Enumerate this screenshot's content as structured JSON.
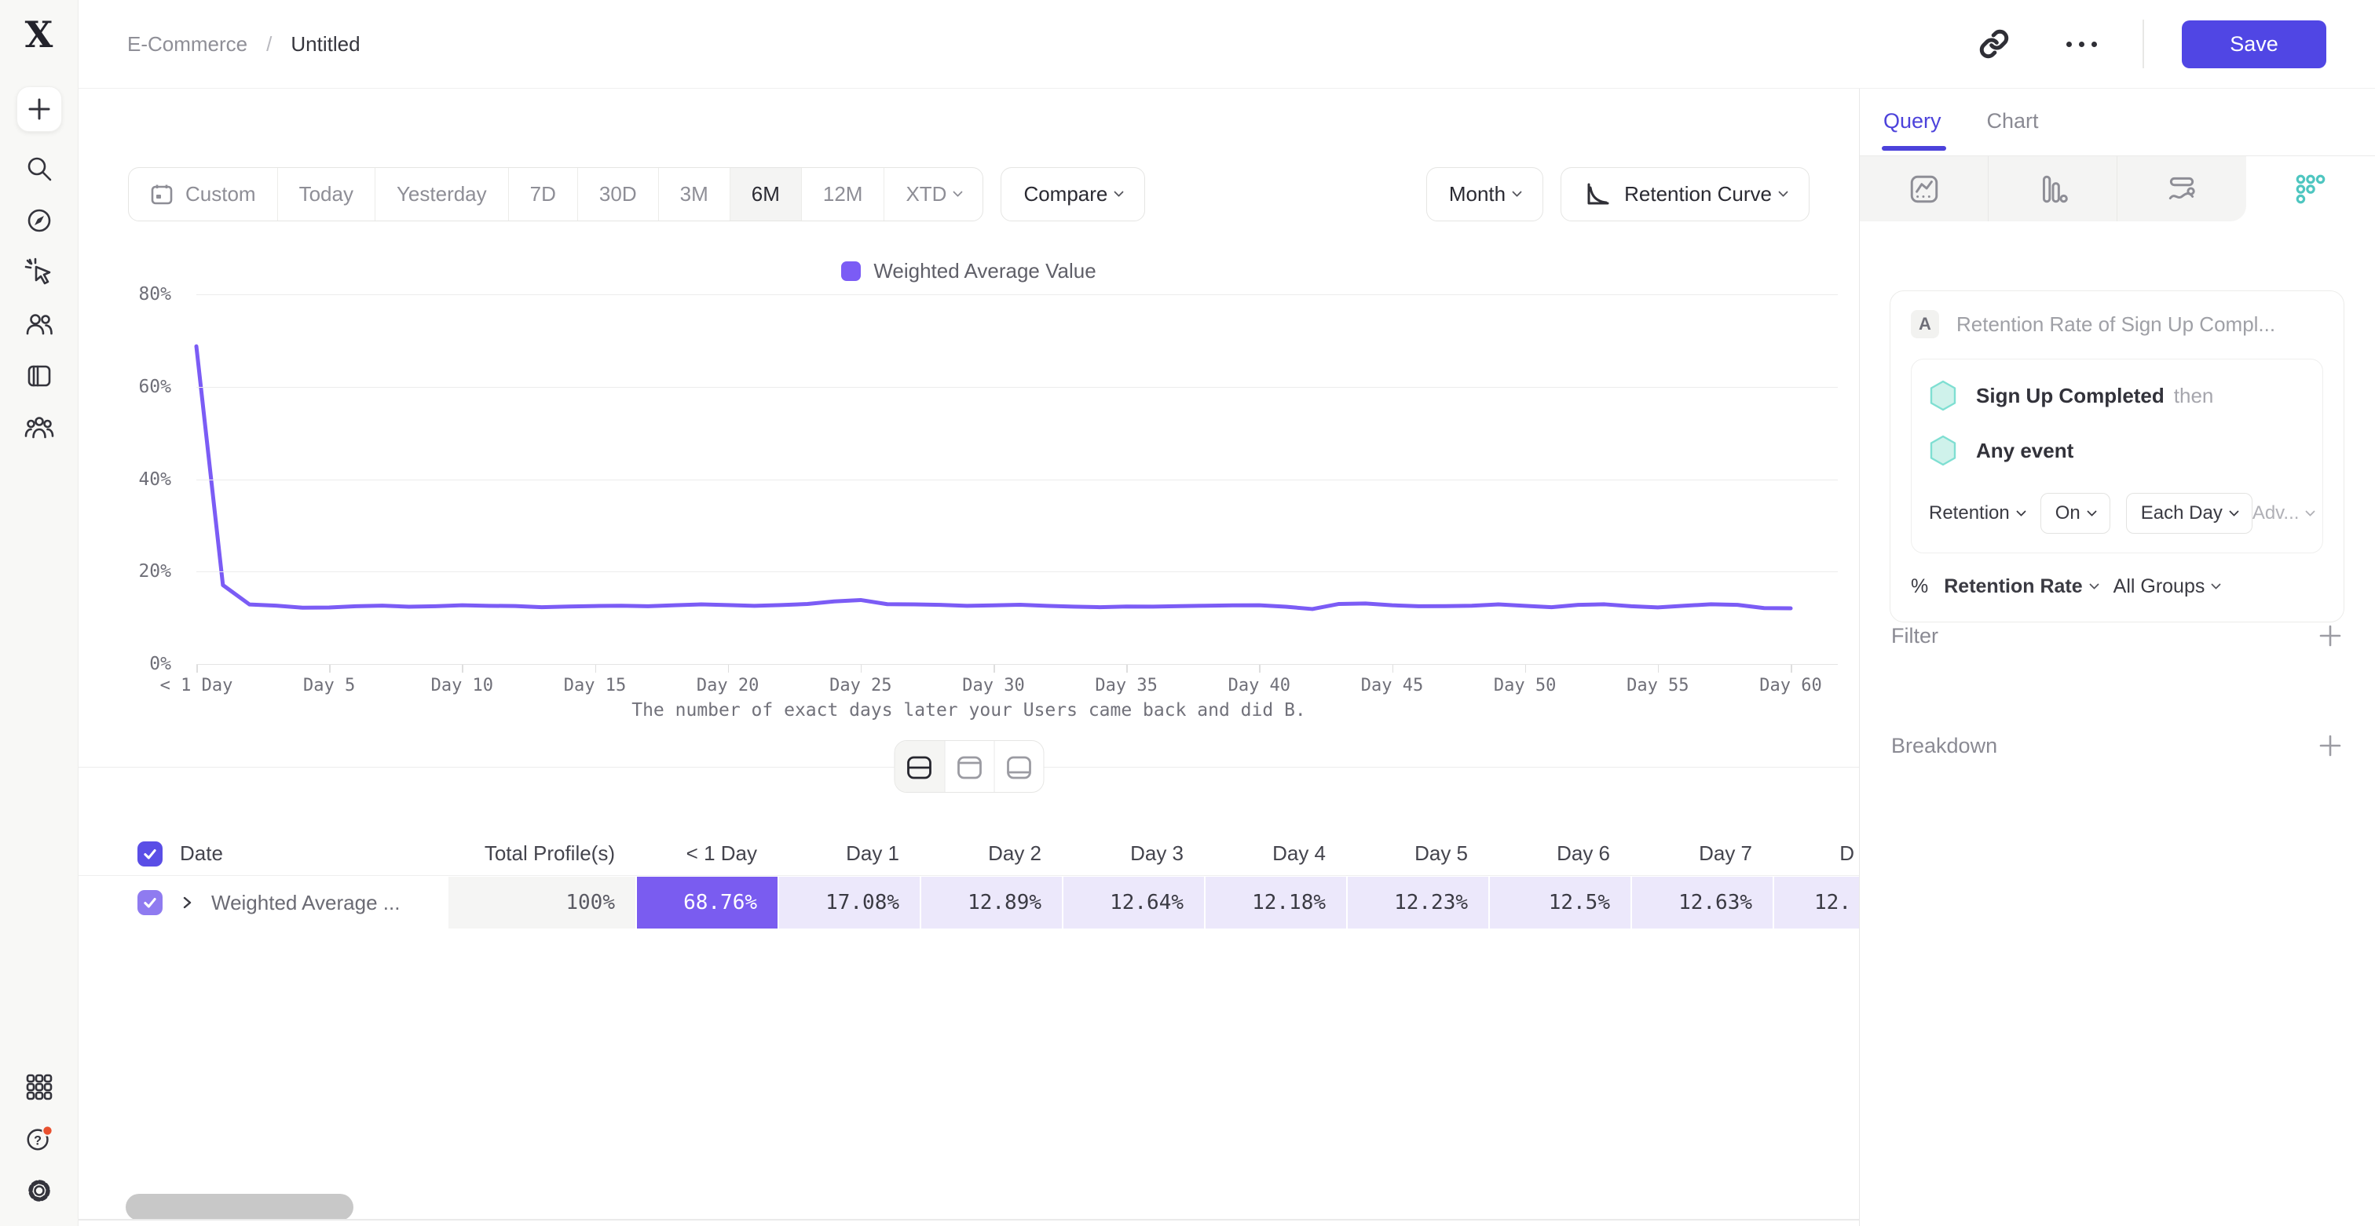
{
  "header": {
    "breadcrumb": {
      "project": "E-Commerce",
      "separator": "/",
      "title": "Untitled"
    },
    "save_label": "Save",
    "icons": [
      "link-icon",
      "more-icon"
    ]
  },
  "sidebar": {
    "icons": [
      "logo",
      "create-plus",
      "search",
      "explore-compass",
      "events-click",
      "users",
      "boards-notebook",
      "cohorts-group"
    ],
    "bottom_icons": [
      "apps-grid",
      "help",
      "settings"
    ],
    "logo_glyph": "X"
  },
  "toolbar": {
    "date_ranges": [
      "Custom",
      "Today",
      "Yesterday",
      "7D",
      "30D",
      "3M",
      "6M",
      "12M",
      "XTD"
    ],
    "active_range": "6M",
    "compare_label": "Compare",
    "granularity_label": "Month",
    "chart_type_label": "Retention Curve"
  },
  "legend": {
    "series_label": "Weighted Average Value",
    "swatch_color": "#7B5CF5"
  },
  "chart_data": {
    "type": "line",
    "title": "",
    "xlabel": "The number of exact days later your Users came back and did B.",
    "ylabel": "",
    "ylim": [
      0,
      80
    ],
    "grid": "horizontal",
    "legend_position": "top",
    "y_tick_labels": [
      "0%",
      "20%",
      "40%",
      "60%",
      "80%"
    ],
    "x_tick_labels": [
      "< 1 Day",
      "Day 5",
      "Day 10",
      "Day 15",
      "Day 20",
      "Day 25",
      "Day 30",
      "Day 35",
      "Day 40",
      "Day 45",
      "Day 50",
      "Day 55",
      "Day 60"
    ],
    "x": [
      0,
      1,
      2,
      3,
      4,
      5,
      6,
      7,
      8,
      9,
      10,
      11,
      12,
      13,
      14,
      15,
      16,
      17,
      18,
      19,
      20,
      21,
      22,
      23,
      24,
      25,
      26,
      27,
      28,
      29,
      30,
      31,
      32,
      33,
      34,
      35,
      36,
      37,
      38,
      39,
      40,
      41,
      42,
      43,
      44,
      45,
      46,
      47,
      48,
      49,
      50,
      51,
      52,
      53,
      54,
      55,
      56,
      57,
      58,
      59,
      60
    ],
    "series": [
      {
        "name": "Weighted Average Value",
        "color": "#7B5CF5",
        "values": [
          68.76,
          17.08,
          12.89,
          12.64,
          12.18,
          12.23,
          12.5,
          12.63,
          12.4,
          12.5,
          12.72,
          12.6,
          12.55,
          12.3,
          12.45,
          12.55,
          12.62,
          12.5,
          12.72,
          12.9,
          12.75,
          12.6,
          12.75,
          13.0,
          13.55,
          13.85,
          12.95,
          12.9,
          12.8,
          12.6,
          12.7,
          12.82,
          12.6,
          12.42,
          12.3,
          12.45,
          12.42,
          12.52,
          12.62,
          12.7,
          12.72,
          12.4,
          11.9,
          13.0,
          13.1,
          12.72,
          12.5,
          12.52,
          12.62,
          12.9,
          12.6,
          12.3,
          12.8,
          12.92,
          12.5,
          12.25,
          12.62,
          12.92,
          12.8,
          12.1,
          12.05
        ]
      }
    ]
  },
  "table": {
    "headers": [
      "Date",
      "Total Profile(s)",
      "< 1 Day",
      "Day 1",
      "Day 2",
      "Day 3",
      "Day 4",
      "Day 5",
      "Day 6",
      "Day 7",
      "D"
    ],
    "row": {
      "label": "Weighted Average ...",
      "values": [
        "100%",
        "68.76%",
        "17.08%",
        "12.89%",
        "12.64%",
        "12.18%",
        "12.23%",
        "12.5%",
        "12.63%",
        "12."
      ],
      "checked": true
    },
    "header_checked": true
  },
  "panel": {
    "tabs": [
      "Query",
      "Chart"
    ],
    "active_tab": "Query",
    "view_icons": [
      "insights-icon",
      "funnels-icon",
      "flows-icon",
      "retention-icon"
    ],
    "active_view": "retention",
    "query": {
      "series_badge": "A",
      "series_title": "Retention Rate of Sign Up Compl...",
      "first_event": "Sign Up Completed",
      "then_label": "then",
      "return_event": "Any event",
      "retention_type": "Retention",
      "on_label": "On",
      "interval": "Each Day",
      "advanced_label": "Adv...",
      "metric_symbol": "%",
      "metric": "Retention Rate",
      "groups": "All Groups"
    },
    "sections": [
      {
        "label": "Filter"
      },
      {
        "label": "Breakdown"
      }
    ]
  },
  "colors": {
    "accent": "#5046E4",
    "chart_line": "#7B5CF5",
    "cell_highlight": "#7A5CF0",
    "cell_light": "#ECE8FB",
    "checkbox_header": "#5A4EE6",
    "checkbox_row": "#8F7BF0",
    "teal": "#4EC6C0",
    "hexagon_fill": "#CFF2EB",
    "hexagon_stroke": "#7FDFD2",
    "notification_dot": "#E8502F"
  }
}
